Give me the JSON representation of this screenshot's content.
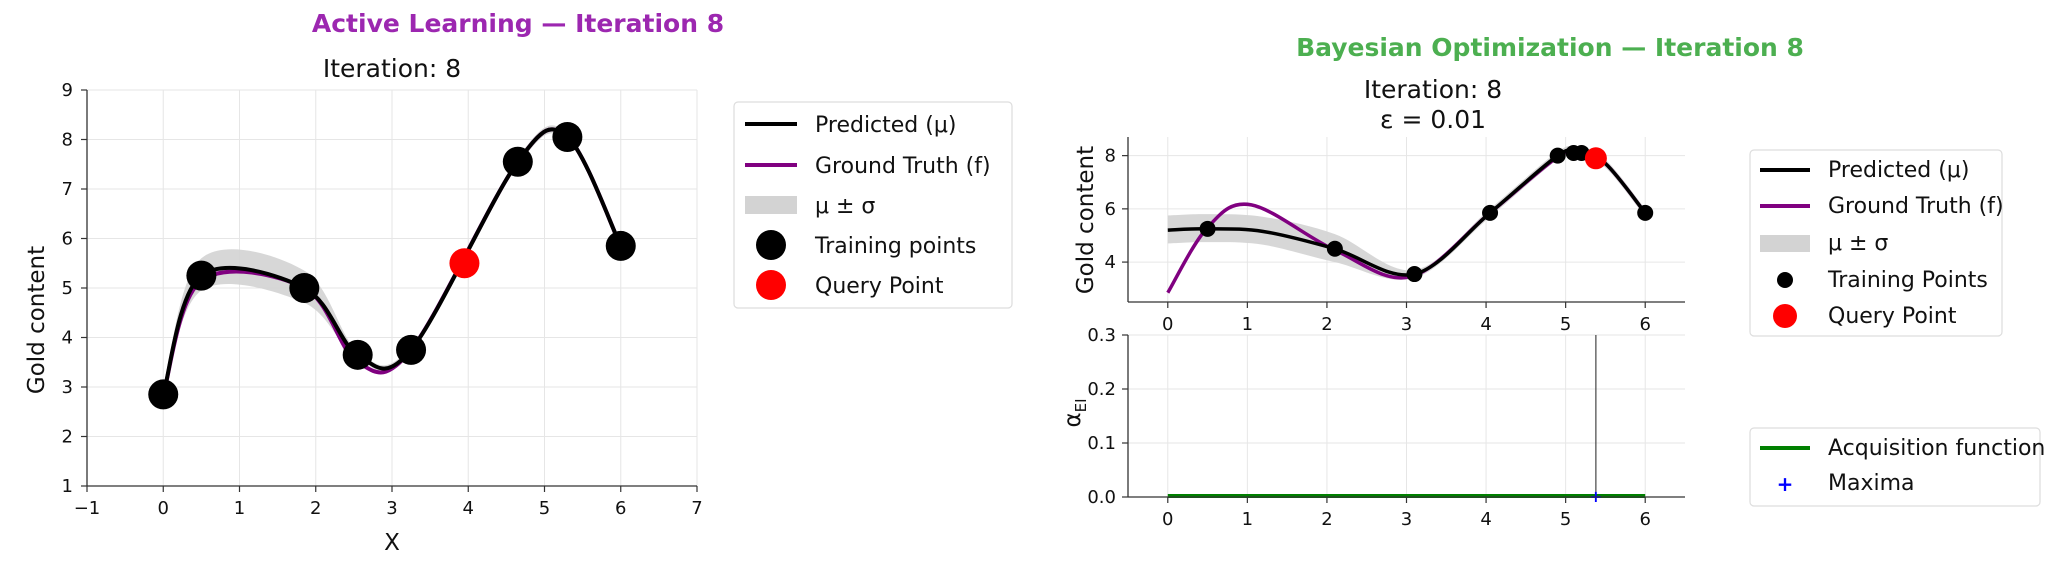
{
  "colors": {
    "predicted": "#000000",
    "ground_truth": "#800080",
    "band": "#d3d3d3",
    "training": "#000000",
    "query": "#ff0000",
    "acquisition": "#008000",
    "maxima": "#0000ff",
    "al_title": "#9c27b0",
    "bo_title": "#4caf50"
  },
  "chart_data": [
    {
      "id": "active-learning",
      "type": "line",
      "suptitle": "Active Learning — Iteration 8",
      "title": "Iteration: 8",
      "xlabel": "X",
      "ylabel": "Gold content",
      "xlim": [
        -1,
        7
      ],
      "ylim": [
        1,
        9
      ],
      "xticks": [
        "−1",
        "0",
        "1",
        "2",
        "3",
        "4",
        "5",
        "6",
        "7"
      ],
      "yticks": [
        "1",
        "2",
        "3",
        "4",
        "5",
        "6",
        "7",
        "8",
        "9"
      ],
      "grid": true,
      "legend_position": "outside-right",
      "legend": [
        "Predicted (μ)",
        "Ground Truth (f)",
        "μ ± σ",
        "Training points",
        "Query Point"
      ],
      "training_points": {
        "x": [
          0.0,
          0.5,
          1.85,
          2.55,
          3.25,
          4.65,
          5.3,
          6.0
        ],
        "y": [
          2.85,
          5.25,
          5.0,
          3.65,
          3.75,
          7.55,
          8.05,
          5.85
        ]
      },
      "query_point": {
        "x": 3.95,
        "y": 5.5
      }
    },
    {
      "id": "bayesian-optimization-top",
      "type": "line",
      "suptitle": "Bayesian Optimization — Iteration 8",
      "title_line1": "Iteration: 8",
      "title_line2": "ε = 0.01",
      "ylabel": "Gold content",
      "xlim": [
        -0.5,
        6.5
      ],
      "ylim": [
        2.5,
        8.7
      ],
      "xticks": [
        "0",
        "1",
        "2",
        "3",
        "4",
        "5",
        "6"
      ],
      "yticks": [
        "4",
        "6",
        "8"
      ],
      "grid": true,
      "legend_position": "outside-right",
      "legend": [
        "Predicted (μ)",
        "Ground Truth (f)",
        "μ ± σ",
        "Training Points",
        "Query Point"
      ],
      "training_points": {
        "x": [
          0.5,
          2.1,
          3.1,
          4.05,
          4.9,
          5.1,
          5.2,
          6.0
        ],
        "y": [
          5.25,
          4.5,
          3.55,
          5.85,
          8.0,
          8.1,
          8.1,
          5.85
        ]
      },
      "query_point": {
        "x": 5.38,
        "y": 7.9
      }
    },
    {
      "id": "bayesian-optimization-bottom",
      "type": "line",
      "ylabel": "αEI",
      "xlim": [
        -0.5,
        6.5
      ],
      "ylim": [
        0,
        0.3
      ],
      "xticks": [
        "0",
        "1",
        "2",
        "3",
        "4",
        "5",
        "6"
      ],
      "yticks": [
        "0.0",
        "0.1",
        "0.2",
        "0.3"
      ],
      "grid": true,
      "legend_position": "outside-right",
      "legend": [
        "Acquisition function",
        "Maxima"
      ],
      "acquisition_line": {
        "x": [
          0,
          6
        ],
        "y": [
          0,
          0
        ]
      },
      "maxima": {
        "x": 5.38,
        "y": 0.0
      }
    }
  ]
}
